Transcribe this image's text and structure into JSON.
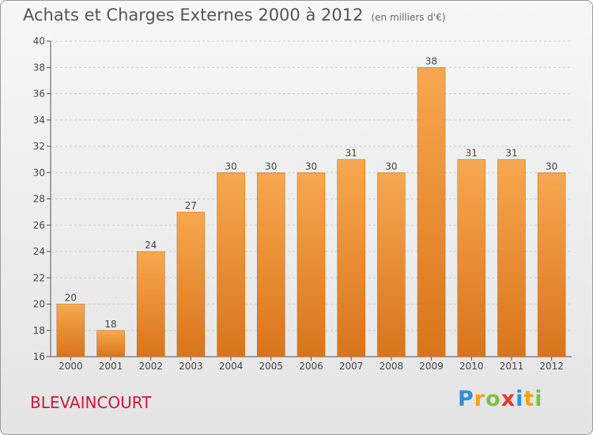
{
  "title": "Achats et Charges Externes 2000 à 2012",
  "unit_note": "(en milliers d'€)",
  "commune": "BLEVAINCOURT",
  "logo": {
    "text": "Proxiti",
    "letters": [
      "P",
      "r",
      "o",
      "x",
      "i",
      "t",
      "i"
    ]
  },
  "colors": {
    "bar_top": "#f7a850",
    "bar_bottom": "#d9741a",
    "commune_text": "#cc1a3c",
    "grid": "#cccccc"
  },
  "chart_data": {
    "type": "bar",
    "categories": [
      "2000",
      "2001",
      "2002",
      "2003",
      "2004",
      "2005",
      "2006",
      "2007",
      "2008",
      "2009",
      "2010",
      "2011",
      "2012"
    ],
    "values": [
      20,
      18,
      24,
      27,
      30,
      30,
      30,
      31,
      30,
      38,
      31,
      31,
      30
    ],
    "ylim": [
      16,
      40
    ],
    "yticks": [
      16,
      18,
      20,
      22,
      24,
      26,
      28,
      30,
      32,
      34,
      36,
      38,
      40
    ],
    "grid": "horizontal dashed"
  }
}
